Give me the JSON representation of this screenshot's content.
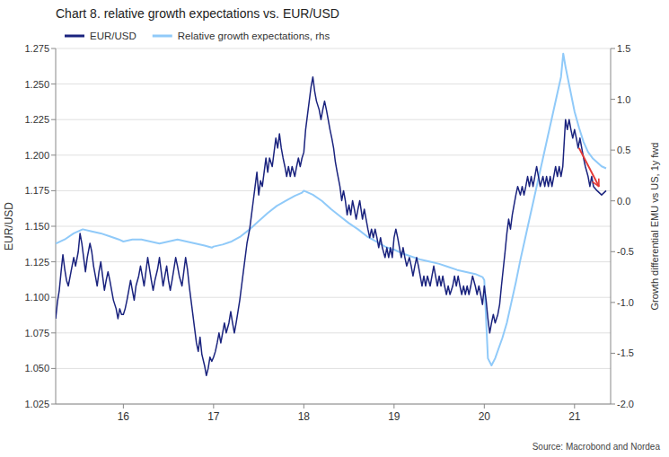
{
  "chart_data": {
    "type": "line",
    "title": "Chart 8. relative growth expectations vs. EUR/USD",
    "ylabel": "EUR/USD",
    "y2label": "Growth differential EMU vs US, 1y fwd",
    "source": "Source: Macrobond and Nordea",
    "legend": "top",
    "grid": true,
    "xlim": [
      2015.25,
      2021.4
    ],
    "xticks": [
      {
        "value": 2016,
        "label": "16"
      },
      {
        "value": 2017,
        "label": "17"
      },
      {
        "value": 2018,
        "label": "18"
      },
      {
        "value": 2019,
        "label": "19"
      },
      {
        "value": 2020,
        "label": "20"
      },
      {
        "value": 2021,
        "label": "21"
      }
    ],
    "ylim": [
      1.025,
      1.275
    ],
    "yticks": [
      1.025,
      {
        "value": 1.05,
        "label": "1.050"
      },
      1.075,
      {
        "value": 1.1,
        "label": "1.100"
      },
      1.125,
      {
        "value": 1.15,
        "label": "1.150"
      },
      1.175,
      {
        "value": 1.2,
        "label": "1.200"
      },
      1.225,
      {
        "value": 1.25,
        "label": "1.250"
      },
      1.275
    ],
    "y2lim": [
      -2.0,
      1.5
    ],
    "y2ticks": [
      {
        "value": -2.0,
        "label": "-2.0"
      },
      -1.5,
      {
        "value": -1.0,
        "label": "-1.0"
      },
      -0.5,
      {
        "value": 0.0,
        "label": "0.0"
      },
      0.5,
      {
        "value": 1.0,
        "label": "1.0"
      },
      1.5
    ],
    "series": [
      {
        "name": "EUR/USD",
        "color": "#1a237e",
        "x": [
          2015.25,
          2015.27,
          2015.29,
          2015.31,
          2015.33,
          2015.35,
          2015.37,
          2015.39,
          2015.42,
          2015.45,
          2015.47,
          2015.5,
          2015.52,
          2015.54,
          2015.56,
          2015.58,
          2015.6,
          2015.63,
          2015.65,
          2015.67,
          2015.69,
          2015.71,
          2015.73,
          2015.75,
          2015.77,
          2015.79,
          2015.81,
          2015.83,
          2015.85,
          2015.87,
          2015.89,
          2015.92,
          2015.94,
          2015.96,
          2015.98,
          2016.0,
          2016.02,
          2016.04,
          2016.06,
          2016.08,
          2016.1,
          2016.12,
          2016.14,
          2016.17,
          2016.19,
          2016.21,
          2016.23,
          2016.25,
          2016.27,
          2016.29,
          2016.31,
          2016.33,
          2016.35,
          2016.38,
          2016.4,
          2016.42,
          2016.44,
          2016.46,
          2016.48,
          2016.5,
          2016.52,
          2016.54,
          2016.56,
          2016.58,
          2016.6,
          2016.62,
          2016.65,
          2016.67,
          2016.69,
          2016.71,
          2016.73,
          2016.75,
          2016.77,
          2016.79,
          2016.81,
          2016.83,
          2016.85,
          2016.87,
          2016.9,
          2016.92,
          2016.94,
          2016.96,
          2016.98,
          2017.0,
          2017.02,
          2017.04,
          2017.06,
          2017.08,
          2017.1,
          2017.12,
          2017.14,
          2017.17,
          2017.19,
          2017.21,
          2017.23,
          2017.25,
          2017.27,
          2017.29,
          2017.31,
          2017.33,
          2017.35,
          2017.37,
          2017.4,
          2017.42,
          2017.44,
          2017.46,
          2017.48,
          2017.5,
          2017.52,
          2017.54,
          2017.56,
          2017.58,
          2017.6,
          2017.62,
          2017.65,
          2017.67,
          2017.69,
          2017.71,
          2017.73,
          2017.75,
          2017.77,
          2017.79,
          2017.81,
          2017.83,
          2017.85,
          2017.87,
          2017.9,
          2017.92,
          2017.94,
          2017.96,
          2017.98,
          2018.0,
          2018.02,
          2018.04,
          2018.06,
          2018.08,
          2018.1,
          2018.12,
          2018.14,
          2018.17,
          2018.19,
          2018.21,
          2018.23,
          2018.25,
          2018.27,
          2018.29,
          2018.31,
          2018.33,
          2018.35,
          2018.37,
          2018.4,
          2018.42,
          2018.44,
          2018.46,
          2018.48,
          2018.5,
          2018.52,
          2018.54,
          2018.56,
          2018.58,
          2018.6,
          2018.62,
          2018.65,
          2018.67,
          2018.69,
          2018.71,
          2018.73,
          2018.75,
          2018.77,
          2018.79,
          2018.81,
          2018.83,
          2018.85,
          2018.87,
          2018.9,
          2018.92,
          2018.94,
          2018.96,
          2018.98,
          2019.0,
          2019.02,
          2019.04,
          2019.06,
          2019.08,
          2019.1,
          2019.12,
          2019.14,
          2019.17,
          2019.19,
          2019.21,
          2019.23,
          2019.25,
          2019.27,
          2019.29,
          2019.31,
          2019.33,
          2019.35,
          2019.37,
          2019.4,
          2019.42,
          2019.44,
          2019.46,
          2019.48,
          2019.5,
          2019.52,
          2019.54,
          2019.56,
          2019.58,
          2019.6,
          2019.62,
          2019.65,
          2019.67,
          2019.69,
          2019.71,
          2019.73,
          2019.75,
          2019.77,
          2019.79,
          2019.81,
          2019.83,
          2019.85,
          2019.87,
          2019.9,
          2019.92,
          2019.94,
          2019.96,
          2019.98,
          2020.0,
          2020.02,
          2020.04,
          2020.06,
          2020.08,
          2020.1,
          2020.12,
          2020.15,
          2020.17,
          2020.19,
          2020.21,
          2020.23,
          2020.25,
          2020.27,
          2020.29,
          2020.31,
          2020.33,
          2020.35,
          2020.37,
          2020.4,
          2020.42,
          2020.44,
          2020.46,
          2020.48,
          2020.5,
          2020.52,
          2020.54,
          2020.56,
          2020.58,
          2020.6,
          2020.62,
          2020.65,
          2020.67,
          2020.69,
          2020.71,
          2020.73,
          2020.75,
          2020.77,
          2020.79,
          2020.81,
          2020.83,
          2020.85,
          2020.87,
          2020.9,
          2020.92,
          2020.94,
          2020.96,
          2020.98,
          2021.0,
          2021.02,
          2021.04,
          2021.06,
          2021.08,
          2021.1,
          2021.12,
          2021.15,
          2021.17,
          2021.19,
          2021.21,
          2021.25,
          2021.3,
          2021.35
        ],
        "values": [
          1.085,
          1.097,
          1.105,
          1.118,
          1.13,
          1.12,
          1.112,
          1.108,
          1.118,
          1.128,
          1.122,
          1.132,
          1.145,
          1.138,
          1.128,
          1.118,
          1.128,
          1.138,
          1.132,
          1.122,
          1.115,
          1.108,
          1.118,
          1.125,
          1.115,
          1.105,
          1.112,
          1.118,
          1.112,
          1.105,
          1.098,
          1.092,
          1.085,
          1.092,
          1.088,
          1.088,
          1.092,
          1.098,
          1.105,
          1.112,
          1.105,
          1.098,
          1.108,
          1.115,
          1.122,
          1.115,
          1.108,
          1.118,
          1.128,
          1.12,
          1.112,
          1.105,
          1.112,
          1.12,
          1.128,
          1.118,
          1.108,
          1.115,
          1.122,
          1.112,
          1.105,
          1.112,
          1.12,
          1.128,
          1.122,
          1.115,
          1.108,
          1.118,
          1.128,
          1.12,
          1.108,
          1.098,
          1.088,
          1.078,
          1.068,
          1.062,
          1.072,
          1.06,
          1.052,
          1.045,
          1.05,
          1.058,
          1.055,
          1.058,
          1.062,
          1.068,
          1.075,
          1.068,
          1.075,
          1.082,
          1.075,
          1.082,
          1.09,
          1.082,
          1.075,
          1.082,
          1.09,
          1.098,
          1.108,
          1.118,
          1.128,
          1.138,
          1.148,
          1.158,
          1.168,
          1.178,
          1.188,
          1.172,
          1.182,
          1.178,
          1.188,
          1.198,
          1.188,
          1.198,
          1.192,
          1.202,
          1.212,
          1.205,
          1.215,
          1.205,
          1.198,
          1.192,
          1.185,
          1.192,
          1.185,
          1.192,
          1.185,
          1.192,
          1.198,
          1.192,
          1.198,
          1.202,
          1.218,
          1.228,
          1.238,
          1.248,
          1.255,
          1.245,
          1.238,
          1.232,
          1.225,
          1.232,
          1.238,
          1.232,
          1.225,
          1.218,
          1.212,
          1.205,
          1.195,
          1.188,
          1.178,
          1.168,
          1.175,
          1.168,
          1.158,
          1.165,
          1.158,
          1.168,
          1.162,
          1.155,
          1.162,
          1.168,
          1.155,
          1.162,
          1.155,
          1.148,
          1.142,
          1.148,
          1.142,
          1.148,
          1.142,
          1.135,
          1.142,
          1.135,
          1.128,
          1.135,
          1.128,
          1.135,
          1.128,
          1.142,
          1.148,
          1.142,
          1.135,
          1.128,
          1.135,
          1.128,
          1.122,
          1.128,
          1.122,
          1.115,
          1.122,
          1.128,
          1.122,
          1.115,
          1.108,
          1.115,
          1.108,
          1.115,
          1.108,
          1.115,
          1.122,
          1.115,
          1.108,
          1.115,
          1.108,
          1.115,
          1.108,
          1.102,
          1.108,
          1.102,
          1.108,
          1.115,
          1.108,
          1.115,
          1.108,
          1.102,
          1.108,
          1.102,
          1.108,
          1.102,
          1.108,
          1.115,
          1.108,
          1.102,
          1.108,
          1.102,
          1.095,
          1.108,
          1.098,
          1.085,
          1.075,
          1.082,
          1.088,
          1.082,
          1.088,
          1.095,
          1.108,
          1.12,
          1.132,
          1.145,
          1.155,
          1.148,
          1.158,
          1.165,
          1.172,
          1.178,
          1.172,
          1.178,
          1.172,
          1.178,
          1.185,
          1.178,
          1.185,
          1.178,
          1.185,
          1.192,
          1.185,
          1.178,
          1.185,
          1.178,
          1.185,
          1.178,
          1.185,
          1.178,
          1.185,
          1.192,
          1.185,
          1.192,
          1.185,
          1.192,
          1.225,
          1.218,
          1.225,
          1.218,
          1.212,
          1.218,
          1.212,
          1.205,
          1.212,
          1.205,
          1.198,
          1.192,
          1.185,
          1.178,
          1.185,
          1.178,
          1.175,
          1.172,
          1.175
        ]
      },
      {
        "name": "Relative growth expectations, rhs",
        "color": "#90caf9",
        "axis": "y2",
        "x": [
          2015.25,
          2015.35,
          2015.45,
          2015.55,
          2015.65,
          2015.75,
          2015.85,
          2015.95,
          2016.0,
          2016.1,
          2016.2,
          2016.3,
          2016.4,
          2016.5,
          2016.6,
          2016.7,
          2016.8,
          2016.9,
          2016.98,
          2017.0,
          2017.1,
          2017.2,
          2017.3,
          2017.4,
          2017.5,
          2017.6,
          2017.7,
          2017.8,
          2017.9,
          2017.98,
          2018.0,
          2018.1,
          2018.2,
          2018.3,
          2018.4,
          2018.5,
          2018.6,
          2018.7,
          2018.8,
          2018.9,
          2018.98,
          2019.0,
          2019.1,
          2019.2,
          2019.3,
          2019.4,
          2019.5,
          2019.6,
          2019.7,
          2019.8,
          2019.9,
          2019.98,
          2020.0,
          2020.04,
          2020.08,
          2020.12,
          2020.16,
          2020.2,
          2020.25,
          2020.3,
          2020.35,
          2020.4,
          2020.45,
          2020.5,
          2020.55,
          2020.6,
          2020.65,
          2020.7,
          2020.75,
          2020.8,
          2020.85,
          2020.875,
          2020.9,
          2020.95,
          2021.0,
          2021.05,
          2021.1,
          2021.15,
          2021.2,
          2021.25,
          2021.3,
          2021.35
        ],
        "values": [
          -0.42,
          -0.38,
          -0.32,
          -0.28,
          -0.3,
          -0.32,
          -0.35,
          -0.38,
          -0.4,
          -0.38,
          -0.38,
          -0.4,
          -0.42,
          -0.4,
          -0.38,
          -0.4,
          -0.42,
          -0.44,
          -0.46,
          -0.45,
          -0.43,
          -0.4,
          -0.35,
          -0.28,
          -0.2,
          -0.12,
          -0.05,
          0.0,
          0.05,
          0.08,
          0.1,
          0.06,
          0.0,
          -0.08,
          -0.15,
          -0.22,
          -0.28,
          -0.35,
          -0.4,
          -0.45,
          -0.48,
          -0.48,
          -0.52,
          -0.55,
          -0.58,
          -0.6,
          -0.62,
          -0.65,
          -0.68,
          -0.7,
          -0.72,
          -0.75,
          -0.78,
          -1.55,
          -1.62,
          -1.55,
          -1.45,
          -1.35,
          -1.2,
          -1.0,
          -0.8,
          -0.58,
          -0.38,
          -0.18,
          0.02,
          0.22,
          0.42,
          0.62,
          0.82,
          1.02,
          1.22,
          1.45,
          1.32,
          1.1,
          0.88,
          0.72,
          0.58,
          0.48,
          0.42,
          0.38,
          0.34,
          0.32
        ]
      }
    ],
    "annotations": [
      {
        "x": 2021.05,
        "y": 1.205,
        "x_end": 2021.27,
        "y_end": 1.178,
        "color": "#e53935"
      }
    ]
  }
}
